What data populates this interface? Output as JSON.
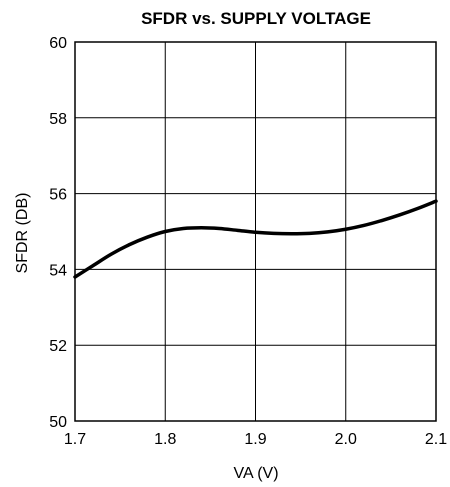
{
  "chart_data": {
    "type": "line",
    "title": "SFDR vs. SUPPLY VOLTAGE",
    "xlabel": "VA (V)",
    "ylabel": "SFDR (DB)",
    "xlim": [
      1.7,
      2.1
    ],
    "ylim": [
      50,
      60
    ],
    "x_ticks": [
      "1.7",
      "1.8",
      "1.9",
      "2.0",
      "2.1"
    ],
    "y_ticks": [
      "50",
      "52",
      "54",
      "56",
      "58",
      "60"
    ],
    "grid": true,
    "series": [
      {
        "color": "#000000",
        "x": [
          1.7,
          1.72,
          1.74,
          1.76,
          1.78,
          1.8,
          1.82,
          1.84,
          1.86,
          1.88,
          1.9,
          1.92,
          1.94,
          1.96,
          1.98,
          2.0,
          2.02,
          2.04,
          2.06,
          2.08,
          2.1
        ],
        "y": [
          53.8,
          54.1,
          54.4,
          54.65,
          54.85,
          55.0,
          55.08,
          55.1,
          55.08,
          55.03,
          54.98,
          54.95,
          54.94,
          54.95,
          54.99,
          55.06,
          55.16,
          55.29,
          55.44,
          55.61,
          55.8
        ]
      }
    ]
  }
}
